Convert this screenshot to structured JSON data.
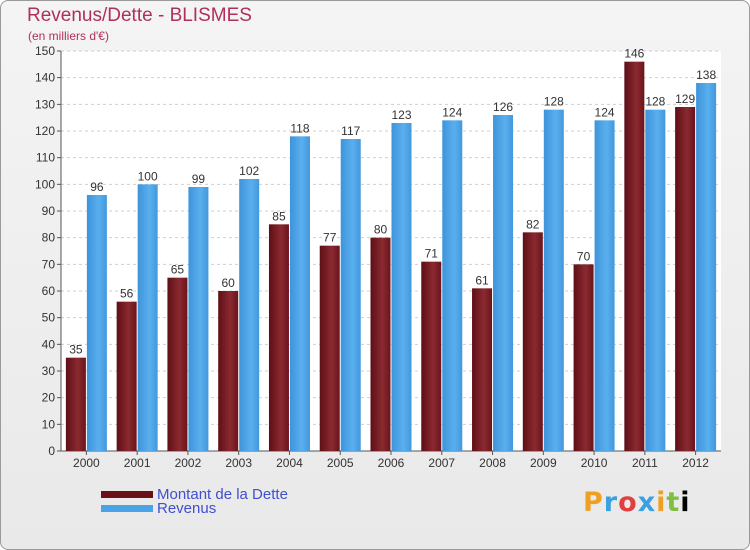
{
  "title": "Revenus/Dette - BLISMES",
  "subtitle": "(en milliers d'€)",
  "logo": "Proxiti",
  "colors": {
    "dette": "#7a1c22",
    "revenus": "#4aa3e6",
    "title": "#b0305a"
  },
  "chart_data": {
    "type": "bar",
    "categories": [
      "2000",
      "2001",
      "2002",
      "2003",
      "2004",
      "2005",
      "2006",
      "2007",
      "2008",
      "2009",
      "2010",
      "2011",
      "2012"
    ],
    "series": [
      {
        "name": "Montant de la Dette",
        "values": [
          35,
          56,
          65,
          60,
          85,
          77,
          80,
          71,
          61,
          82,
          70,
          146,
          129
        ]
      },
      {
        "name": "Revenus",
        "values": [
          96,
          100,
          99,
          102,
          118,
          117,
          123,
          124,
          126,
          128,
          124,
          128,
          138
        ]
      }
    ],
    "ylim": [
      0,
      150
    ],
    "yticks": [
      0,
      10,
      20,
      30,
      40,
      50,
      60,
      70,
      80,
      90,
      100,
      110,
      120,
      130,
      140,
      150
    ],
    "grid": true,
    "legend": "bottom-left"
  }
}
